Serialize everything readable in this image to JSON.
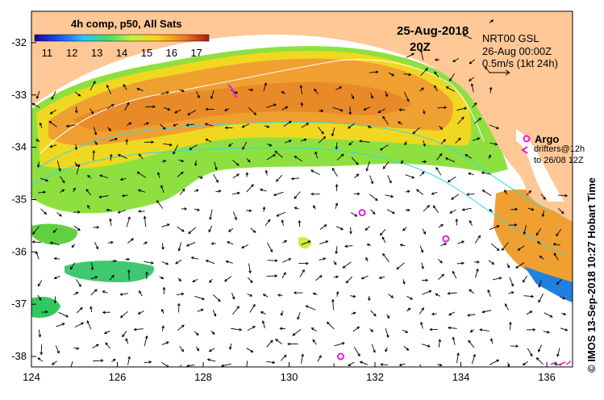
{
  "composite": {
    "title": "4h comp, p50, All Sats",
    "scale_ticks": [
      "11",
      "12",
      "13",
      "14",
      "15",
      "16",
      "17"
    ],
    "scale_min": 10.5,
    "scale_max": 17.5
  },
  "date": "25-Aug-2018",
  "time": "20Z",
  "currents": {
    "source": "NRT00 GSL",
    "valid_time": "26-Aug 00:00Z",
    "scale_label": "0.5m/s (1kt 24h)"
  },
  "argo": {
    "label": "Argo",
    "drifters_line1": "drifters@12h",
    "drifters_line2": "to 26/08 12Z"
  },
  "credit": "© IMOS 13-Sep-2018 10:27 Hobart Time",
  "axes": {
    "x_ticks": [
      {
        "value": 124,
        "label": "124"
      },
      {
        "value": 126,
        "label": "126"
      },
      {
        "value": 128,
        "label": "128"
      },
      {
        "value": 130,
        "label": "130"
      },
      {
        "value": 132,
        "label": "132"
      },
      {
        "value": 134,
        "label": "134"
      },
      {
        "value": 136,
        "label": "136"
      }
    ],
    "y_ticks": [
      {
        "value": -32,
        "label": "-32"
      },
      {
        "value": -33,
        "label": "-33"
      },
      {
        "value": -34,
        "label": "-34"
      },
      {
        "value": -35,
        "label": "-35"
      },
      {
        "value": -36,
        "label": "-36"
      },
      {
        "value": -37,
        "label": "-37"
      },
      {
        "value": -38,
        "label": "-38"
      }
    ],
    "lon_range": [
      124,
      136.6
    ],
    "lat_range": [
      -38.2,
      -31.4
    ]
  },
  "argo_floats": [
    {
      "lon": 131.7,
      "lat": -35.25
    },
    {
      "lon": 133.65,
      "lat": -35.75
    },
    {
      "lon": 131.2,
      "lat": -38.0
    }
  ],
  "colors": {
    "land": "#ffc896",
    "magenta": "#e020e0",
    "ocean_nodata": "#ffffff"
  }
}
